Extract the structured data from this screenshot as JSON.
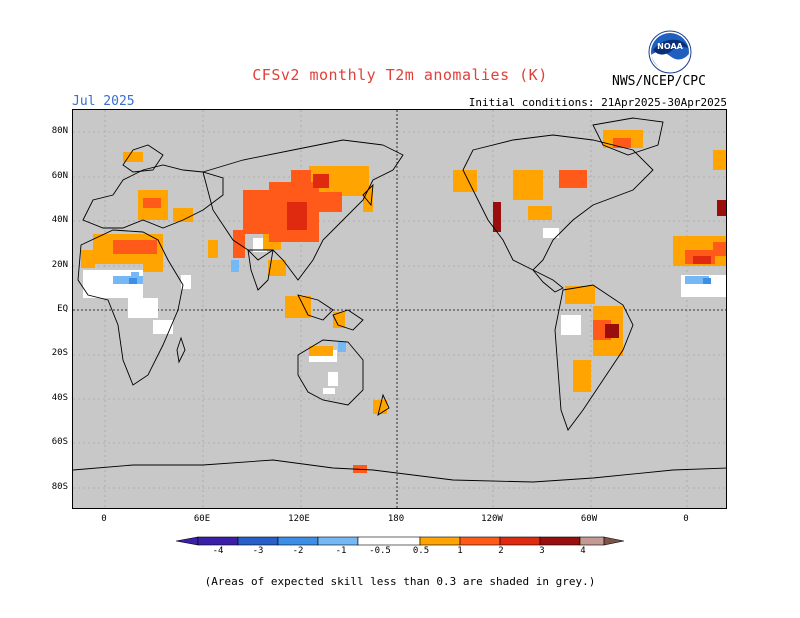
{
  "header": {
    "title": "CFSv2 monthly T2m anomalies (K)",
    "month": "Jul 2025",
    "agency": "NWS/NCEP/CPC",
    "initial_conditions": "Initial conditions: 21Apr2025-30Apr2025",
    "logo_text": "NOAA"
  },
  "axes": {
    "lat_labels": [
      "80N",
      "60N",
      "40N",
      "20N",
      "EQ",
      "20S",
      "40S",
      "60S",
      "80S"
    ],
    "lon_labels": [
      "0",
      "60E",
      "120E",
      "180",
      "120W",
      "60W",
      "0"
    ]
  },
  "colorbar": {
    "labels": [
      "-4",
      "-3",
      "-2",
      "-1",
      "-0.5",
      "0.5",
      "1",
      "2",
      "3",
      "4"
    ],
    "colors": [
      "#3b1fa8",
      "#2a5ec9",
      "#3c8fe6",
      "#76b8f5",
      "#ffffff",
      "#ffa400",
      "#ff5a1a",
      "#e02a10",
      "#9b0e0e",
      "#c49b93",
      "#7a5448"
    ]
  },
  "grey_color": "#c8c8c8",
  "footnote": "(Areas of expected skill less than 0.3 are shaded in grey.)"
}
